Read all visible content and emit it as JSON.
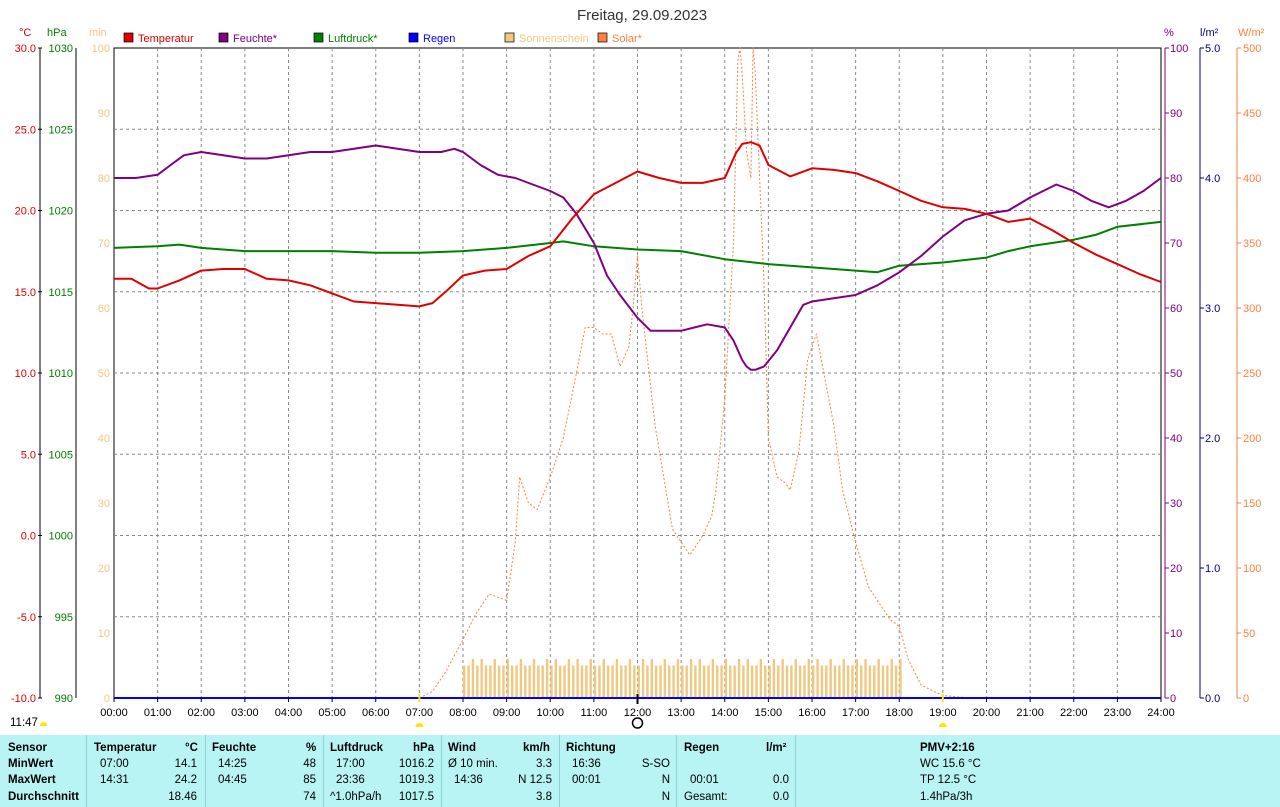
{
  "title": "Freitag, 29.09.2023",
  "current_time": "11:47",
  "colors": {
    "temperature": "#e00000",
    "humidity": "#800080",
    "pressure": "#008000",
    "rain": "#0000ff",
    "sunshine": "#f0c880",
    "solar": "#ff7f3f",
    "grid": "#888888",
    "stats_bg": "#b8f4f4"
  },
  "legend": [
    {
      "label": "Temperatur",
      "color": "#e00000"
    },
    {
      "label": "Feuchte*",
      "color": "#800080"
    },
    {
      "label": "Luftdruck*",
      "color": "#008000"
    },
    {
      "label": "Regen",
      "color": "#0000ff"
    },
    {
      "label": "Sonnenschein",
      "color": "#f0c880"
    },
    {
      "label": "Solar*",
      "color": "#ff7f3f"
    }
  ],
  "axes": {
    "temp_unit": "°C",
    "pressure_unit": "hPa",
    "sun_unit": "min",
    "hum_unit": "%",
    "rain_unit": "l/m²",
    "solar_unit": "W/m²",
    "temp_ticks": [
      "30.0",
      "25.0",
      "20.0",
      "15.0",
      "10.0",
      "5.0",
      "0.0",
      "-5.0",
      "-10.0"
    ],
    "pressure_ticks": [
      "1030",
      "1025",
      "1020",
      "1015",
      "1010",
      "1005",
      "1000",
      "995",
      "990"
    ],
    "sun_ticks": [
      "100",
      "90",
      "80",
      "70",
      "60",
      "50",
      "40",
      "30",
      "20",
      "10",
      "0"
    ],
    "hum_ticks": [
      "100",
      "90",
      "80",
      "70",
      "60",
      "50",
      "40",
      "30",
      "20",
      "10",
      "0"
    ],
    "rain_ticks": [
      "5.0",
      "4.0",
      "3.0",
      "2.0",
      "1.0",
      "0.0"
    ],
    "solar_ticks": [
      "500",
      "450",
      "400",
      "350",
      "300",
      "250",
      "200",
      "150",
      "100",
      "50",
      "0"
    ],
    "x_ticks": [
      "00:00",
      "01:00",
      "02:00",
      "03:00",
      "04:00",
      "05:00",
      "06:00",
      "07:00",
      "08:00",
      "09:00",
      "10:00",
      "11:00",
      "12:00",
      "13:00",
      "14:00",
      "15:00",
      "16:00",
      "17:00",
      "18:00",
      "19:00",
      "20:00",
      "21:00",
      "22:00",
      "23:00",
      "24:00"
    ]
  },
  "chart_data": {
    "type": "line",
    "title": "Freitag, 29.09.2023",
    "x_range": [
      0,
      24
    ],
    "grid": true,
    "legend_position": "top",
    "series": [
      {
        "name": "Temperatur",
        "unit": "°C",
        "ylim": [
          -10,
          30
        ],
        "x": [
          0,
          0.4,
          0.8,
          1.0,
          1.5,
          2.0,
          2.5,
          3.0,
          3.5,
          4.0,
          4.5,
          5.0,
          5.5,
          6.0,
          6.5,
          7.0,
          7.3,
          7.6,
          8.0,
          8.5,
          9.0,
          9.5,
          10.0,
          10.5,
          11.0,
          11.5,
          12.0,
          12.5,
          13.0,
          13.5,
          14.0,
          14.25,
          14.4,
          14.6,
          14.8,
          15.0,
          15.5,
          16.0,
          16.5,
          17.0,
          17.5,
          18.0,
          18.5,
          19.0,
          19.5,
          20.0,
          20.5,
          21.0,
          21.5,
          22.0,
          22.5,
          23.0,
          23.5,
          24.0
        ],
        "values": [
          15.8,
          15.8,
          15.2,
          15.2,
          15.7,
          16.3,
          16.4,
          16.4,
          15.8,
          15.7,
          15.4,
          14.9,
          14.4,
          14.3,
          14.2,
          14.1,
          14.3,
          15.0,
          16.0,
          16.3,
          16.4,
          17.2,
          17.8,
          19.5,
          21.0,
          21.7,
          22.4,
          22.0,
          21.7,
          21.7,
          22.0,
          23.5,
          24.1,
          24.2,
          24.0,
          22.8,
          22.1,
          22.6,
          22.5,
          22.3,
          21.8,
          21.2,
          20.6,
          20.2,
          20.1,
          19.8,
          19.3,
          19.5,
          18.8,
          18.0,
          17.3,
          16.7,
          16.1,
          15.6
        ]
      },
      {
        "name": "Feuchte*",
        "unit": "%",
        "ylim": [
          0,
          100
        ],
        "x": [
          0,
          0.5,
          1.0,
          1.3,
          1.6,
          2.0,
          2.5,
          3.0,
          3.5,
          4.0,
          4.5,
          5.0,
          5.5,
          6.0,
          6.5,
          7.0,
          7.5,
          7.8,
          8.0,
          8.4,
          8.8,
          9.2,
          9.6,
          10.0,
          10.3,
          10.6,
          11.0,
          11.3,
          11.6,
          12.0,
          12.3,
          12.6,
          13.0,
          13.3,
          13.6,
          14.0,
          14.2,
          14.4,
          14.5,
          14.6,
          14.7,
          14.9,
          15.2,
          15.5,
          15.8,
          16.0,
          16.5,
          17.0,
          17.5,
          18.0,
          18.5,
          19.0,
          19.5,
          20.0,
          20.5,
          21.0,
          21.3,
          21.6,
          22.0,
          22.4,
          22.8,
          23.2,
          23.6,
          24.0
        ],
        "values": [
          80,
          80,
          80.5,
          82,
          83.5,
          84,
          83.5,
          83,
          83,
          83.5,
          84,
          84,
          84.5,
          85,
          84.5,
          84,
          84,
          84.5,
          84,
          82,
          80.5,
          80,
          79,
          78,
          77,
          74.5,
          70,
          65,
          62,
          58.5,
          56.5,
          56.5,
          56.5,
          57,
          57.5,
          57,
          55,
          52,
          51,
          50.5,
          50.5,
          51,
          53.5,
          57,
          60.5,
          61,
          61.5,
          62,
          63.5,
          65.5,
          68,
          71,
          73.5,
          74.5,
          75,
          77,
          78,
          79,
          78,
          76.5,
          75.5,
          76.5,
          78,
          80
        ]
      },
      {
        "name": "Luftdruck*",
        "unit": "hPa",
        "ylim": [
          990,
          1030
        ],
        "x": [
          0,
          1,
          1.5,
          2,
          3,
          4,
          5,
          6,
          7,
          8,
          9,
          10,
          10.3,
          11,
          12,
          13,
          14,
          15,
          16,
          17,
          17.5,
          18,
          19,
          20,
          20.5,
          21,
          22,
          22.5,
          23,
          24
        ],
        "values": [
          1017.7,
          1017.8,
          1017.9,
          1017.7,
          1017.5,
          1017.5,
          1017.5,
          1017.4,
          1017.4,
          1017.5,
          1017.7,
          1018,
          1018.1,
          1017.8,
          1017.6,
          1017.5,
          1017,
          1016.7,
          1016.5,
          1016.3,
          1016.2,
          1016.6,
          1016.8,
          1017.1,
          1017.5,
          1017.8,
          1018.2,
          1018.5,
          1019.0,
          1019.3
        ]
      },
      {
        "name": "Regen",
        "unit": "l/m²",
        "ylim": [
          0,
          5
        ],
        "x": [
          0,
          24
        ],
        "values": [
          0,
          0
        ]
      },
      {
        "name": "Sonnenschein",
        "unit": "min",
        "ylim": [
          0,
          100
        ],
        "x": [
          8,
          8.1,
          8.2,
          8.3,
          8.4,
          8.5,
          8.6,
          8.7,
          8.8,
          8.9,
          9.0,
          9.1,
          9.2,
          9.3,
          9.4,
          9.5,
          9.6,
          9.7,
          9.8,
          9.9,
          10.0,
          10.1,
          10.2,
          10.3,
          10.4,
          10.5,
          10.6,
          10.7,
          10.8,
          10.9,
          11.0,
          11.1,
          11.2,
          11.3,
          11.4,
          11.5,
          11.6,
          11.7,
          11.8,
          11.9,
          12.0,
          12.1,
          12.2,
          12.3,
          12.4,
          12.5,
          12.6,
          12.7,
          12.8,
          12.9,
          13.0,
          13.1,
          13.2,
          13.3,
          13.4,
          13.5,
          13.6,
          13.7,
          13.8,
          13.9,
          14.0,
          14.1,
          14.2,
          14.3,
          14.4,
          14.5,
          14.6,
          14.7,
          14.8,
          14.9,
          15.0,
          15.1,
          15.2,
          15.3,
          15.4,
          15.5,
          15.6,
          15.7,
          15.8,
          15.9,
          16.0,
          16.1,
          16.2,
          16.3,
          16.4,
          16.5,
          16.6,
          16.7,
          16.8,
          16.9,
          17.0,
          17.1,
          17.2,
          17.3,
          17.4,
          17.5,
          17.6,
          17.7,
          17.8,
          17.9,
          18.0
        ],
        "values": [
          5,
          5,
          6,
          5,
          6,
          5,
          5,
          6,
          5,
          5,
          6,
          5,
          5,
          6,
          5,
          5,
          6,
          5,
          5,
          6,
          5,
          6,
          5,
          5,
          6,
          5,
          6,
          5,
          5,
          6,
          5,
          5,
          6,
          5,
          5,
          6,
          5,
          5,
          6,
          5,
          5,
          6,
          5,
          6,
          5,
          5,
          6,
          5,
          5,
          6,
          5,
          5,
          6,
          5,
          6,
          5,
          5,
          6,
          5,
          5,
          6,
          5,
          5,
          6,
          5,
          6,
          5,
          5,
          6,
          5,
          5,
          6,
          5,
          6,
          5,
          5,
          6,
          5,
          5,
          6,
          5,
          6,
          5,
          5,
          6,
          5,
          5,
          6,
          5,
          5,
          6,
          5,
          6,
          5,
          5,
          6,
          5,
          5,
          6,
          5,
          6
        ]
      },
      {
        "name": "Solar*",
        "unit": "W/m²",
        "ylim": [
          0,
          500
        ],
        "x": [
          7.0,
          7.3,
          7.6,
          8.0,
          8.3,
          8.6,
          9.0,
          9.2,
          9.3,
          9.5,
          9.7,
          10.0,
          10.3,
          10.6,
          10.8,
          11.0,
          11.2,
          11.4,
          11.6,
          11.8,
          11.9,
          12.0,
          12.1,
          12.2,
          12.4,
          12.6,
          12.8,
          13.0,
          13.2,
          13.5,
          13.7,
          13.8,
          14.0,
          14.1,
          14.2,
          14.3,
          14.35,
          14.4,
          14.5,
          14.6,
          14.65,
          14.7,
          14.8,
          14.9,
          15.0,
          15.2,
          15.4,
          15.5,
          15.7,
          15.9,
          16.1,
          16.3,
          16.5,
          16.7,
          17.0,
          17.3,
          17.6,
          17.8,
          18.0,
          18.2,
          18.5,
          18.8,
          19.0,
          19.3,
          19.6,
          19.8
        ],
        "values": [
          0,
          5,
          20,
          45,
          65,
          80,
          75,
          120,
          170,
          150,
          145,
          170,
          200,
          250,
          285,
          285,
          280,
          280,
          255,
          270,
          300,
          340,
          300,
          270,
          210,
          170,
          130,
          120,
          110,
          125,
          140,
          160,
          230,
          290,
          350,
          490,
          500,
          480,
          420,
          400,
          500,
          480,
          400,
          320,
          200,
          170,
          165,
          160,
          190,
          260,
          280,
          245,
          210,
          160,
          120,
          85,
          70,
          60,
          55,
          30,
          10,
          5,
          2,
          1,
          0,
          0
        ]
      }
    ]
  },
  "stats": {
    "sensor": {
      "header": "Sensor",
      "rows": [
        "MinWert",
        "MaxWert",
        "Durchschnitt"
      ]
    },
    "temperature": {
      "header": "Temperatur",
      "unit": "°C",
      "min_time": "07:00",
      "min": "14.1",
      "max_time": "14:31",
      "max": "24.2",
      "avg": "18.46"
    },
    "humidity": {
      "header": "Feuchte",
      "unit": "%",
      "min_time": "14:25",
      "min": "48",
      "max_time": "04:45",
      "max": "85",
      "avg": "74"
    },
    "pressure": {
      "header": "Luftdruck",
      "unit": "hPa",
      "min_time": "17:00",
      "min": "1016.2",
      "max_time": "23:36",
      "max": "1019.3",
      "trend": "^1.0hPa/h",
      "avg": "1017.5"
    },
    "wind": {
      "header": "Wind",
      "unit": "km/h",
      "min_label": "Ø 10 min.",
      "min": "3.3",
      "max_time": "14:36",
      "max": "N 12.5",
      "avg": "3.8"
    },
    "direction": {
      "header": "Richtung",
      "min_time": "16:36",
      "min": "S-SO",
      "max_time": "00:01",
      "max": "N",
      "avg": "N"
    },
    "rain": {
      "header": "Regen",
      "unit": "l/m²",
      "max_time": "00:01",
      "max": "0.0",
      "total_label": "Gesamt:",
      "total": "0.0"
    },
    "pmv": {
      "header": "PMV+2:16",
      "wc": "WC 15.6 °C",
      "tp": "TP 12.5 °C",
      "trend": "1.4hPa/3h"
    }
  }
}
